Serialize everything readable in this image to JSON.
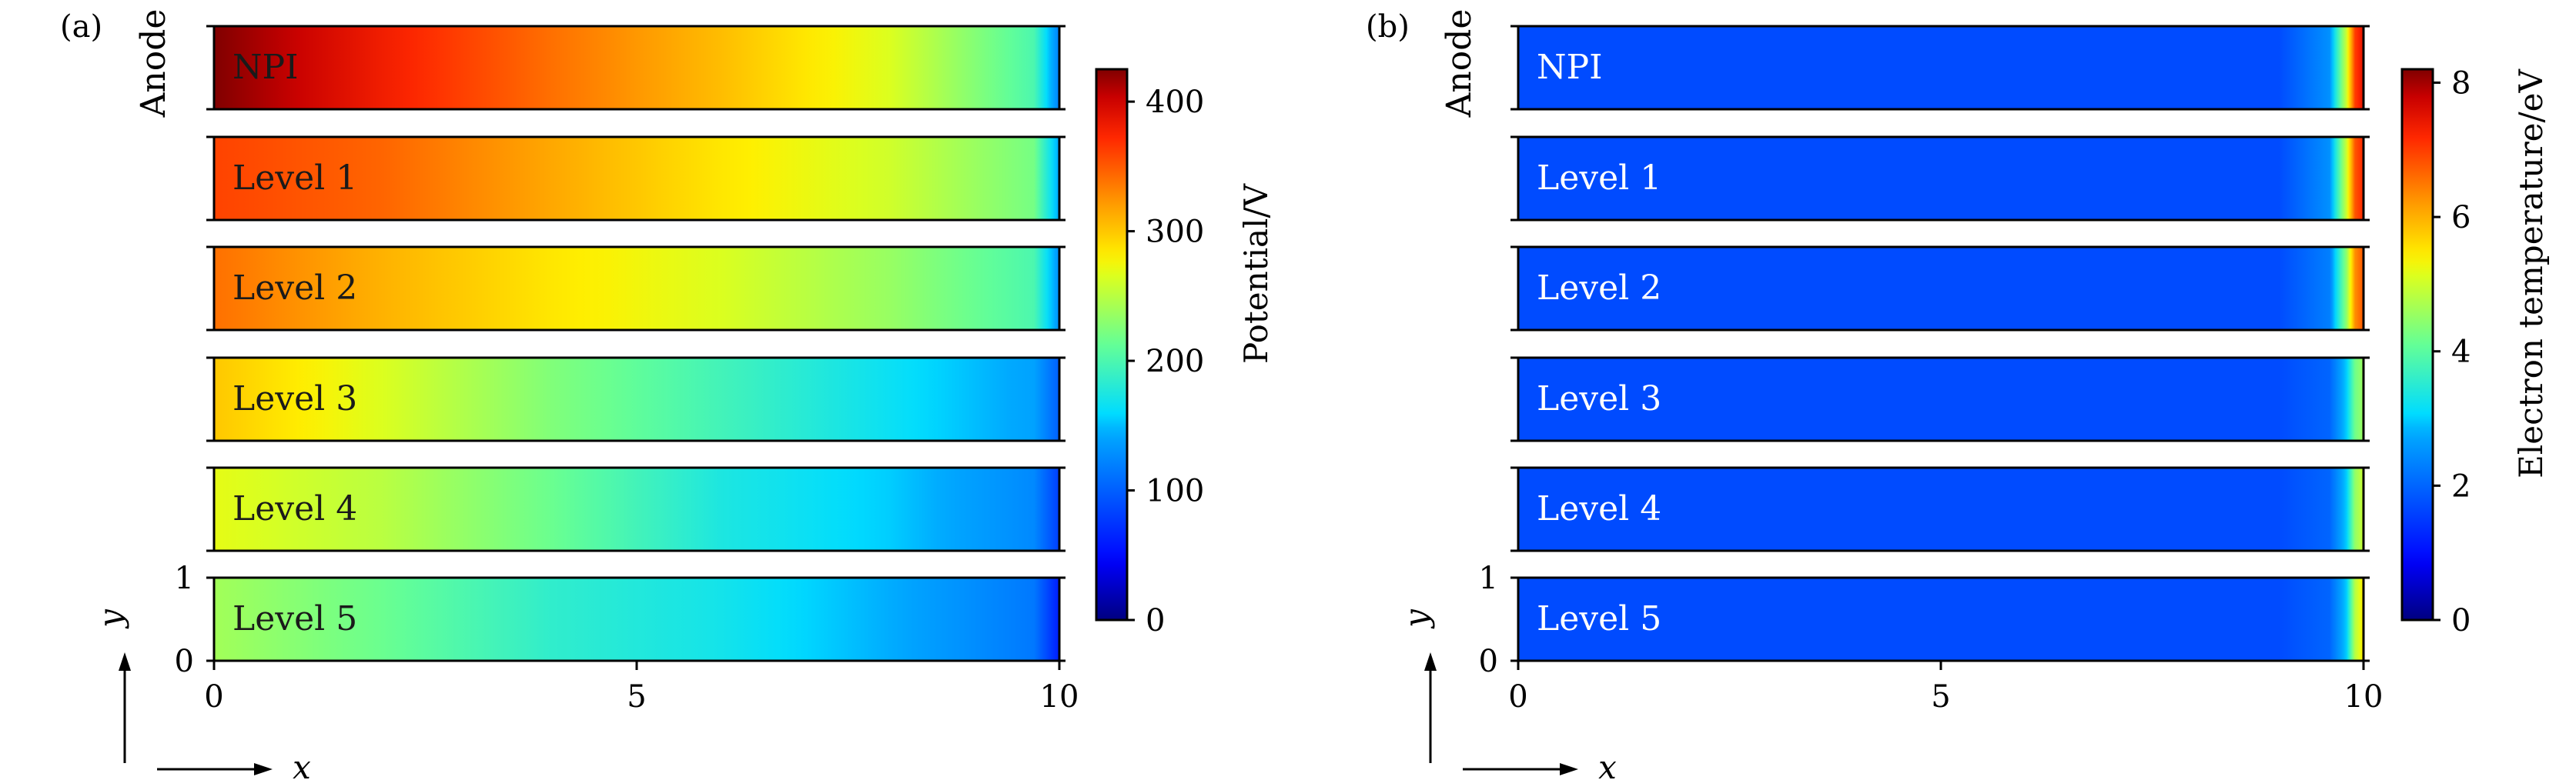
{
  "panels": [
    {
      "id": "a",
      "label": "(a)",
      "y_side_label": "Anode",
      "colorbar": {
        "title": "Potential/V",
        "ticks": [
          "0",
          "100",
          "200",
          "300",
          "400"
        ],
        "tick_values": [
          0,
          100,
          200,
          300,
          400
        ],
        "range": [
          0,
          425
        ]
      },
      "row_labels": [
        "NPI",
        "Level 1",
        "Level 2",
        "Level 3",
        "Level 4",
        "Level 5"
      ],
      "x_ticks": [
        "0",
        "5",
        "10"
      ],
      "y_ticks": [
        "0",
        "1"
      ],
      "x_axis_letter": "x",
      "y_axis_letter": "y"
    },
    {
      "id": "b",
      "label": "(b)",
      "y_side_label": "Anode",
      "colorbar": {
        "title": "Electron temperature/eV",
        "ticks": [
          "0",
          "2",
          "4",
          "6",
          "8"
        ],
        "tick_values": [
          0,
          2,
          4,
          6,
          8
        ],
        "range": [
          0,
          8.2
        ]
      },
      "row_labels": [
        "NPI",
        "Level 1",
        "Level 2",
        "Level 3",
        "Level 4",
        "Level 5"
      ],
      "x_ticks": [
        "0",
        "5",
        "10"
      ],
      "y_ticks": [
        "0",
        "1"
      ],
      "x_axis_letter": "x",
      "y_axis_letter": "y"
    }
  ],
  "chart_data": [
    {
      "type": "heatmap",
      "panel": "(a)",
      "quantity": "Potential/V",
      "xlim": [
        0,
        10
      ],
      "ylim": [
        0,
        1
      ],
      "colorbar_range": [
        0,
        425
      ],
      "rows": [
        {
          "name": "NPI",
          "profile_x": [
            0,
            2,
            4,
            6,
            8,
            9.7,
            10
          ],
          "profile_value": [
            425,
            380,
            340,
            305,
            265,
            200,
            120
          ]
        },
        {
          "name": "Level 1",
          "profile_x": [
            0,
            2,
            4,
            6,
            8,
            9.7,
            10
          ],
          "profile_value": [
            360,
            345,
            315,
            285,
            260,
            220,
            140
          ]
        },
        {
          "name": "Level 2",
          "profile_x": [
            0,
            2,
            4,
            6,
            8,
            9.7,
            10
          ],
          "profile_value": [
            340,
            310,
            285,
            265,
            235,
            200,
            130
          ]
        },
        {
          "name": "Level 3",
          "profile_x": [
            0,
            2,
            4,
            6,
            8,
            9.7,
            10
          ],
          "profile_value": [
            300,
            265,
            225,
            195,
            165,
            140,
            100
          ]
        },
        {
          "name": "Level 4",
          "profile_x": [
            0,
            2,
            4,
            6,
            8,
            9.7,
            10
          ],
          "profile_value": [
            270,
            250,
            215,
            175,
            155,
            125,
            80
          ]
        },
        {
          "name": "Level 5",
          "profile_x": [
            0,
            2,
            4,
            6,
            8,
            9.7,
            10
          ],
          "profile_value": [
            240,
            215,
            185,
            170,
            145,
            115,
            60
          ]
        }
      ]
    },
    {
      "type": "heatmap",
      "panel": "(b)",
      "quantity": "Electron temperature/eV",
      "xlim": [
        0,
        10
      ],
      "ylim": [
        0,
        1
      ],
      "colorbar_range": [
        0,
        8.2
      ],
      "rows": [
        {
          "name": "NPI",
          "profile_x": [
            0,
            9.0,
            9.6,
            9.8,
            9.9,
            10
          ],
          "profile_value": [
            1.7,
            1.7,
            2.5,
            5.0,
            7.0,
            7.5
          ]
        },
        {
          "name": "Level 1",
          "profile_x": [
            0,
            9.0,
            9.6,
            9.8,
            9.9,
            10
          ],
          "profile_value": [
            1.7,
            1.7,
            2.5,
            5.0,
            6.8,
            7.2
          ]
        },
        {
          "name": "Level 2",
          "profile_x": [
            0,
            9.0,
            9.6,
            9.8,
            9.9,
            10
          ],
          "profile_value": [
            1.7,
            1.7,
            2.3,
            4.5,
            6.3,
            6.8
          ]
        },
        {
          "name": "Level 3",
          "profile_x": [
            0,
            9.0,
            9.6,
            9.8,
            9.9,
            10
          ],
          "profile_value": [
            1.7,
            1.7,
            2.0,
            3.0,
            4.2,
            4.6
          ]
        },
        {
          "name": "Level 4",
          "profile_x": [
            0,
            9.0,
            9.6,
            9.8,
            9.9,
            10
          ],
          "profile_value": [
            1.7,
            1.7,
            2.0,
            3.0,
            4.5,
            5.0
          ]
        },
        {
          "name": "Level 5",
          "profile_x": [
            0,
            9.0,
            9.6,
            9.8,
            9.9,
            10
          ],
          "profile_value": [
            1.7,
            1.7,
            2.0,
            3.0,
            4.8,
            5.5
          ]
        }
      ]
    }
  ]
}
